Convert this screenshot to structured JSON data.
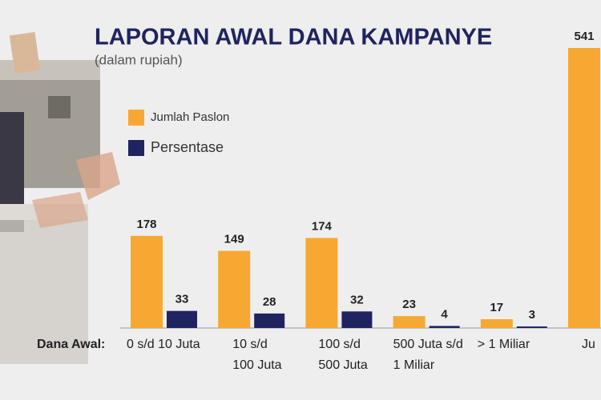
{
  "chart_data": {
    "type": "bar",
    "title": "LAPORAN AWAL DANA KAMPANYE",
    "subtitle": "(dalam rupiah)",
    "x_label": "Dana Awal:",
    "categories": [
      "0 s/d 10 Juta",
      "10 s/d\n100 Juta",
      "100 s/d\n500 Juta",
      "500 Juta s/d\n1 Miliar",
      "> 1 Miliar",
      "Ju"
    ],
    "series": [
      {
        "name": "Jumlah Paslon",
        "color": "#f7a833",
        "values": [
          178,
          149,
          174,
          23,
          17,
          541
        ]
      },
      {
        "name": "Persentase",
        "color": "#1f2460",
        "values": [
          33,
          28,
          32,
          4,
          3,
          null
        ]
      }
    ]
  }
}
